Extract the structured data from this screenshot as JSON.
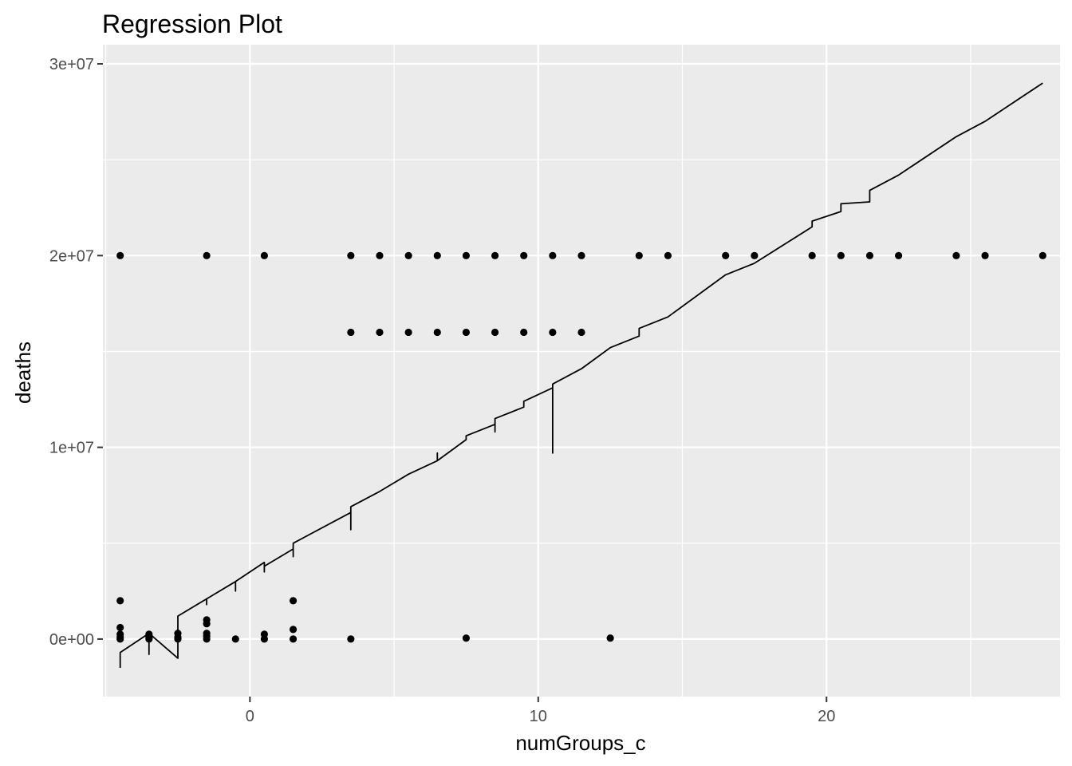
{
  "chart_data": {
    "type": "scatter",
    "title": "Regression Plot",
    "xlabel": "numGroups_c",
    "ylabel": "deaths",
    "xlim": [
      -5.1,
      28.1
    ],
    "ylim": [
      -3000000,
      31000000
    ],
    "x_ticks": [
      0,
      10,
      20
    ],
    "x_tick_labels": [
      "0",
      "10",
      "20"
    ],
    "y_ticks": [
      0,
      10000000,
      20000000,
      30000000
    ],
    "y_tick_labels": [
      "0e+00",
      "1e+07",
      "2e+07",
      "3e+07"
    ],
    "grid": true,
    "legend": "none",
    "colors": {
      "panel": "#ebebeb",
      "grid": "#ffffff",
      "points": "#000000",
      "line": "#000000",
      "tick": "#333333"
    },
    "series": [
      {
        "kind": "points",
        "x": [
          -4.5,
          -4.5,
          -4.5,
          -4.5,
          -4.5,
          -4.5,
          -3.5,
          -3.5,
          -3.5,
          -3.5,
          -2.5,
          -2.5,
          -2.5,
          -1.5,
          -1.5,
          -1.5,
          -1.5,
          -1.5,
          -1.5,
          -0.5,
          0.5,
          0.5,
          0.5,
          1.5,
          1.5,
          1.5,
          3.5,
          3.5,
          3.5,
          4.5,
          4.5,
          5.5,
          5.5,
          6.5,
          6.5,
          7.5,
          7.5,
          7.5,
          8.5,
          8.5,
          9.5,
          9.5,
          10.5,
          10.5,
          11.5,
          11.5,
          12.5,
          13.5,
          14.5,
          16.5,
          17.5,
          19.5,
          20.5,
          21.5,
          22.5,
          24.5,
          25.5,
          27.5
        ],
        "y": [
          20000000,
          2000000,
          600000,
          250000,
          100000,
          0,
          250000,
          150000,
          50000,
          0,
          300000,
          100000,
          0,
          20000000,
          1000000,
          800000,
          300000,
          150000,
          0,
          0,
          20000000,
          250000,
          0,
          2000000,
          500000,
          0,
          20000000,
          16000000,
          0,
          20000000,
          16000000,
          20000000,
          16000000,
          20000000,
          16000000,
          20000000,
          16000000,
          50000,
          20000000,
          16000000,
          20000000,
          16000000,
          20000000,
          16000000,
          20000000,
          16000000,
          50000,
          20000000,
          20000000,
          20000000,
          20000000,
          20000000,
          20000000,
          20000000,
          20000000,
          20000000,
          20000000,
          20000000
        ]
      },
      {
        "kind": "line",
        "x": [
          -4.5,
          -4.5,
          -4.5,
          -3.5,
          -3.5,
          -3.5,
          -2.5,
          -2.5,
          -2.5,
          -1.5,
          -1.5,
          -1.5,
          -0.5,
          -0.5,
          -0.5,
          0.5,
          0.5,
          0.5,
          1.5,
          1.5,
          1.5,
          3.5,
          3.5,
          3.5,
          4.5,
          5.5,
          6.5,
          6.5,
          6.5,
          7.5,
          7.5,
          7.5,
          8.5,
          8.5,
          8.5,
          9.5,
          9.5,
          10.5,
          10.5,
          10.5,
          11.5,
          12.5,
          13.5,
          13.5,
          14.5,
          16.5,
          17.5,
          19.5,
          19.5,
          20.5,
          20.5,
          21.5,
          21.5,
          22.5,
          24.5,
          25.5,
          27.5
        ],
        "y": [
          -1500000,
          -700000,
          -700000,
          300000,
          -800000,
          300000,
          -1000000,
          1200000,
          1200000,
          2100000,
          1800000,
          2100000,
          3000000,
          2500000,
          3000000,
          4000000,
          3500000,
          3800000,
          4700000,
          4300000,
          5000000,
          6600000,
          5700000,
          6900000,
          7700000,
          8600000,
          9300000,
          9700000,
          9300000,
          10400000,
          10600000,
          10600000,
          11200000,
          10800000,
          11500000,
          12100000,
          12400000,
          13100000,
          9700000,
          13300000,
          14100000,
          15200000,
          15800000,
          16200000,
          16800000,
          19000000,
          19600000,
          21500000,
          21800000,
          22300000,
          22700000,
          22800000,
          23400000,
          24200000,
          26200000,
          27000000,
          29000000
        ]
      }
    ]
  }
}
